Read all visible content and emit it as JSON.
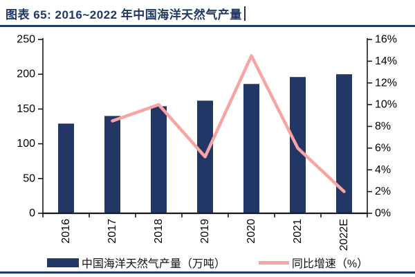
{
  "header": {
    "title": "图表 65: 2016~2022 年中国海洋天然气产量"
  },
  "colors": {
    "bar_navy": "#233766",
    "line_pink": "#F9A3A3",
    "title_navy": "#1F3864",
    "rule_navy": "#1F3864",
    "axis_black": "#1a1a1a",
    "tick_text": "#000000"
  },
  "chart_data": {
    "type": "bar",
    "subtype": "bar+line combo, dual axis",
    "title": "2016~2022 年中国海洋天然气产量",
    "categories": [
      "2016",
      "2017",
      "2018",
      "2019",
      "2020",
      "2021",
      "2022E"
    ],
    "series": [
      {
        "name": "中国海洋天然气产量（万吨）",
        "type": "bar",
        "axis": "left",
        "color": "#233766",
        "values": [
          129,
          140,
          154,
          162,
          186,
          196,
          200
        ]
      },
      {
        "name": "同比增速（%）",
        "type": "line",
        "axis": "right",
        "color": "#F9A3A3",
        "values": [
          null,
          8.5,
          10.0,
          5.2,
          14.5,
          6.0,
          2.0
        ]
      }
    ],
    "left_axis": {
      "min": 0,
      "max": 250,
      "step": 50,
      "tick_labels": [
        "250",
        "200",
        "150",
        "100",
        "50",
        "0"
      ]
    },
    "right_axis": {
      "min": 0,
      "max": 16,
      "step": 2,
      "tick_labels": [
        "16%",
        "14%",
        "12%",
        "10%",
        "8%",
        "6%",
        "4%",
        "2%",
        "0%"
      ]
    },
    "grid": false,
    "legend_position": "bottom",
    "x_tick_label_rotation": -90
  }
}
